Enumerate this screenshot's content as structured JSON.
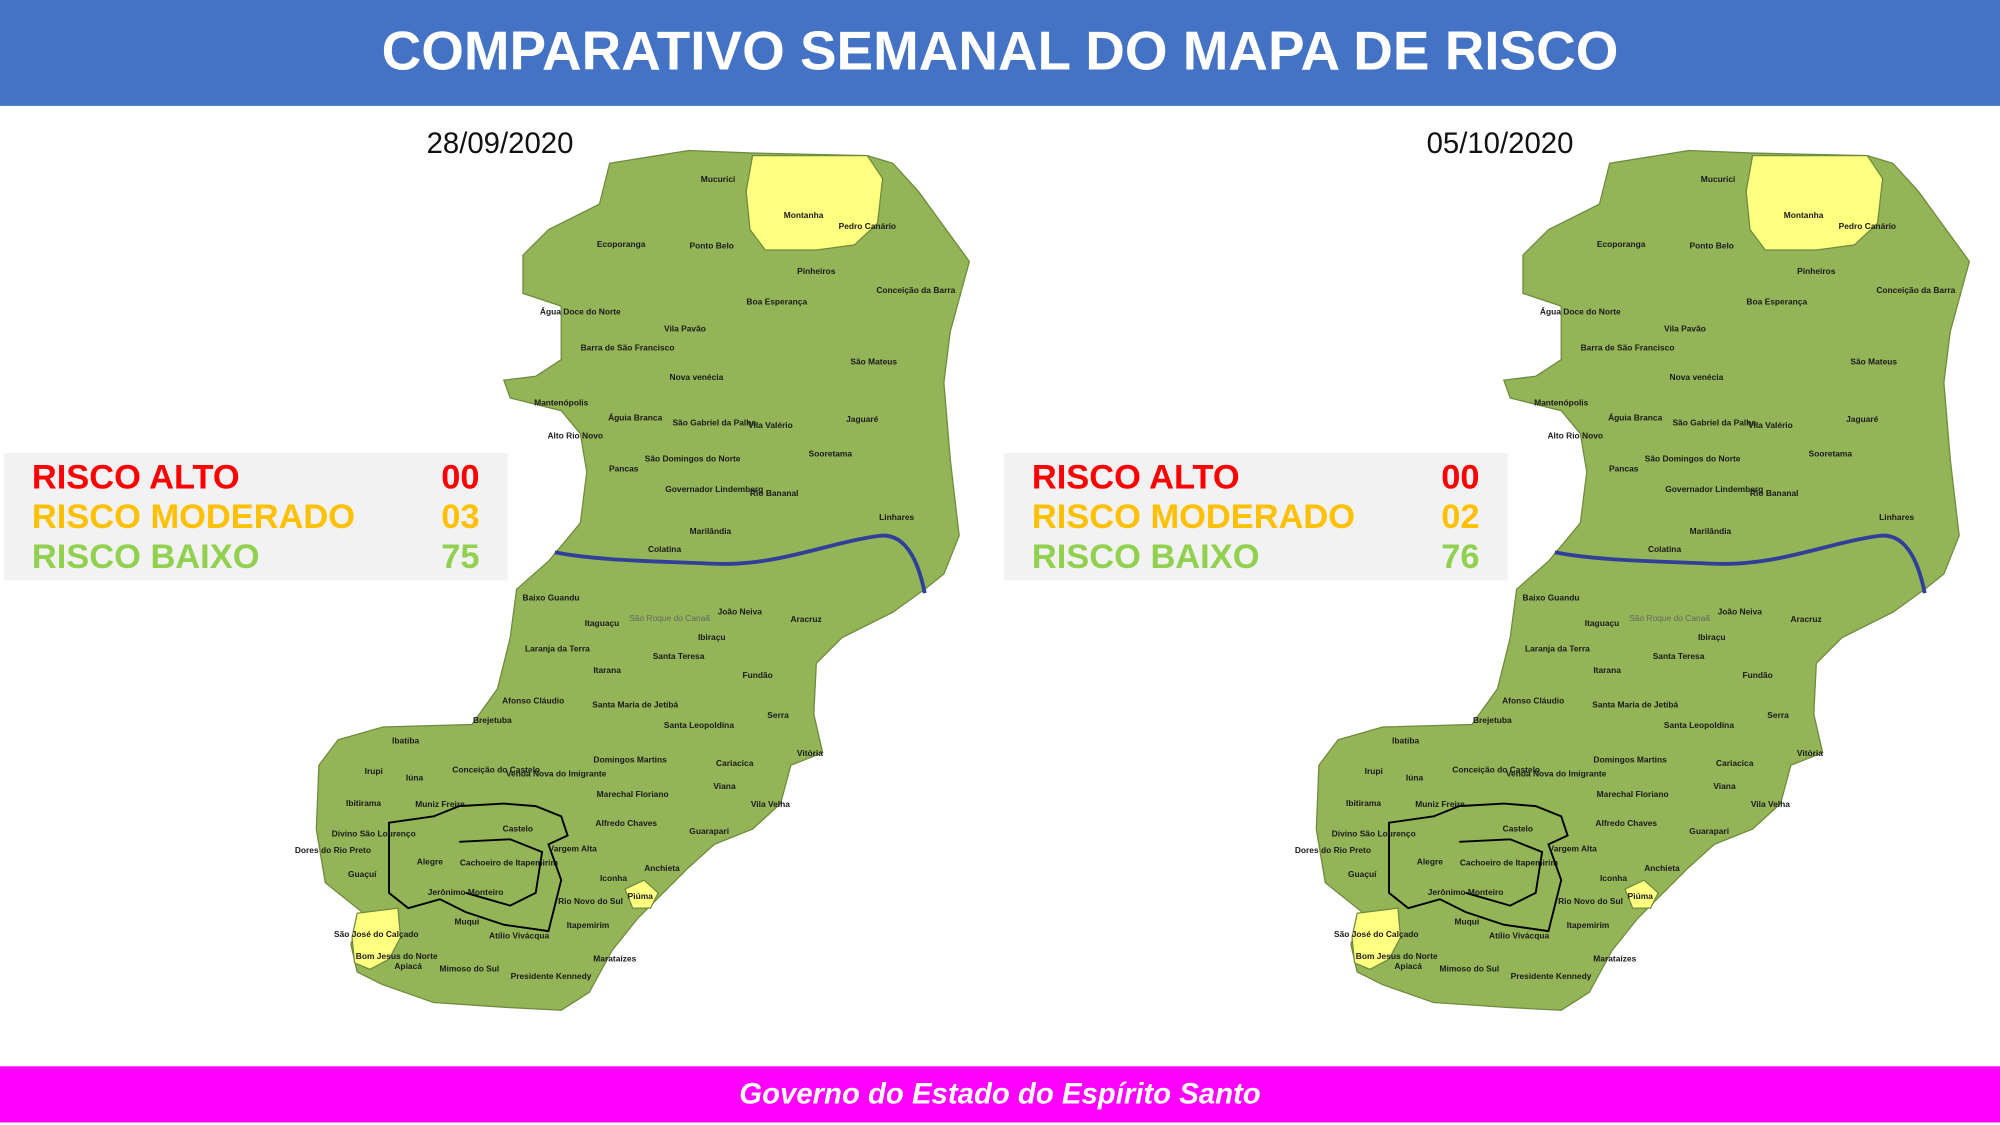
{
  "header": {
    "title": "COMPARATIVO SEMANAL DO MAPA DE RISCO"
  },
  "maps": [
    {
      "date": "28/09/2020",
      "legend": [
        {
          "label": "RISCO ALTO",
          "value": "00"
        },
        {
          "label": "RISCO MODERADO",
          "value": "03"
        },
        {
          "label": "RISCO BAIXO",
          "value": "75"
        }
      ]
    },
    {
      "date": "05/10/2020",
      "legend": [
        {
          "label": "RISCO ALTO",
          "value": "00"
        },
        {
          "label": "RISCO MODERADO",
          "value": "02"
        },
        {
          "label": "RISCO BAIXO",
          "value": "76"
        }
      ]
    }
  ],
  "municipalities": [
    "Mucurici",
    "Montanha",
    "Pedro Canário",
    "Ecoporanga",
    "Ponto Belo",
    "Pinheiros",
    "Conceição da Barra",
    "Água Doce do Norte",
    "Boa Esperança",
    "Vila Pavão",
    "Barra de São Francisco",
    "São Mateus",
    "Nova venécia",
    "Mantenópolis",
    "Águia Branca",
    "São Gabriel da Palha",
    "Vila Valério",
    "Jaguaré",
    "Alto Rio Novo",
    "Sooretama",
    "São Domingos do Norte",
    "Pancas",
    "Governador Lindemberg",
    "Rio Bananal",
    "Linhares",
    "Marilândia",
    "Colatina",
    "Baixo Guandu",
    "São Roque do Canaã",
    "João Neiva",
    "Aracruz",
    "Itaguaçu",
    "Ibiraçu",
    "Laranja da Terra",
    "Santa Teresa",
    "Itarana",
    "Fundão",
    "Afonso Cláudio",
    "Santa Maria de Jetibá",
    "Serra",
    "Santa Leopoldina",
    "Brejetuba",
    "Ibatiba",
    "Vitória",
    "Domingos Martins",
    "Conceição do Castelo",
    "Venda Nova do Imigrante",
    "Cariacica",
    "Irupi",
    "Iúna",
    "Viana",
    "Marechal Floriano",
    "Vila Velha",
    "Ibitirama",
    "Muniz Freire",
    "Divino São Lourenço",
    "Dores do Rio Preto",
    "Castelo",
    "Alfredo Chaves",
    "Guarapari",
    "Vargem Alta",
    "Cachoeiro de Itapemirim",
    "Alegre",
    "Guaçuí",
    "Anchieta",
    "Iconha",
    "Jerônimo Monteiro",
    "Rio Novo do Sul",
    "Piúma",
    "São José do Calçado",
    "Muqui",
    "Atílio Vivácqua",
    "Itapemirim",
    "Bom Jesus do Norte",
    "Apiacá",
    "Mimoso do Sul",
    "Marataízes",
    "Presidente Kennedy"
  ],
  "footer": {
    "text": "Governo do Estado do Espírito Santo"
  }
}
